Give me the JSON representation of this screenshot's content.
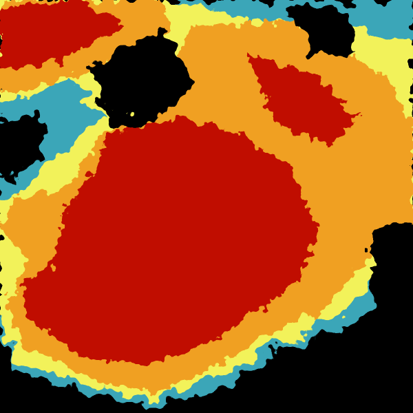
{
  "image": {
    "kind": "radar reflectivity map",
    "colors": {
      "background": "#000000",
      "weak": "#3aa6b8",
      "light": "#a8e0a0",
      "moderate": "#f2f25a",
      "strong": "#f0a020",
      "heavy": "#e05010",
      "intense": "#c00800"
    }
  }
}
